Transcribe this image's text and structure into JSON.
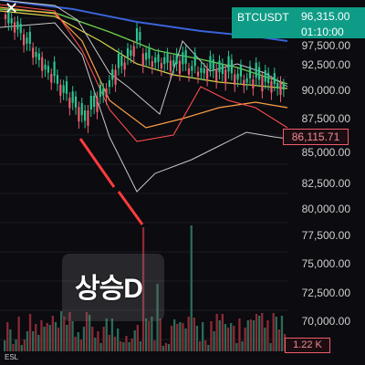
{
  "top": {
    "close_icon": "close-icon"
  },
  "symbol": {
    "name": "BTCUSDT",
    "price": "96,315.00",
    "time": "01:10:00",
    "bg": "#0e9c86"
  },
  "price_axis": {
    "ticks": [
      "97,500.00",
      "92,500.00",
      "90,000.00",
      "87,500.00",
      "85,000.00",
      "82,500.00",
      "80,000.00",
      "77,500.00",
      "75,000.00",
      "72,500.00",
      "70,000.00"
    ],
    "last_price": "86,115.71"
  },
  "volume": {
    "label": "1.22 K"
  },
  "annotation": {
    "text": "상승D"
  },
  "footer": {
    "label": "ESL"
  },
  "chart_data": {
    "type": "line",
    "ylim": [
      67500,
      98000
    ],
    "series": [],
    "colors": {
      "up": "#29c58f",
      "down": "#f05c6b",
      "grid": "#1b1b24"
    }
  }
}
